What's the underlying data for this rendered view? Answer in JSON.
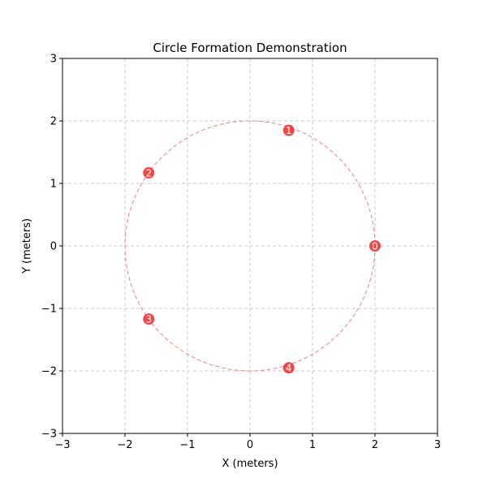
{
  "chart_data": {
    "type": "scatter",
    "title": "Circle Formation Demonstration",
    "xlabel": "X (meters)",
    "ylabel": "Y (meters)",
    "xlim": [
      -3,
      3
    ],
    "ylim": [
      -3,
      3
    ],
    "xticks": [
      -3,
      -2,
      -1,
      0,
      1,
      2,
      3
    ],
    "yticks": [
      -3,
      -2,
      -1,
      0,
      1,
      2,
      3
    ],
    "xtick_labels": [
      "−3",
      "−2",
      "−1",
      "0",
      "1",
      "2",
      "3"
    ],
    "ytick_labels": [
      "−3",
      "−2",
      "−1",
      "0",
      "1",
      "2",
      "3"
    ],
    "grid": true,
    "reference_circle": {
      "cx": 0,
      "cy": 0,
      "r": 2
    },
    "points": [
      {
        "label": "0",
        "x": 2.0,
        "y": 0.0
      },
      {
        "label": "1",
        "x": 0.62,
        "y": 1.85
      },
      {
        "label": "2",
        "x": -1.62,
        "y": 1.17
      },
      {
        "label": "3",
        "x": -1.62,
        "y": -1.17
      },
      {
        "label": "4",
        "x": 0.62,
        "y": -1.95
      }
    ],
    "colors": {
      "point": "#ee3333",
      "circle": "#f08080",
      "grid": "#c8c8c8"
    }
  }
}
